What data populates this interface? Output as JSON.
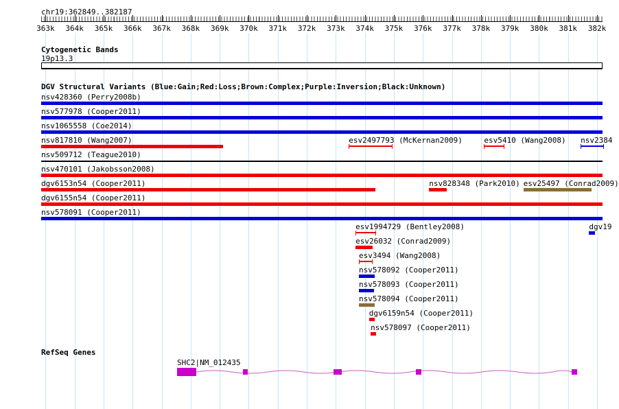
{
  "header": {
    "position": "chr19:362849..382187"
  },
  "grid": {
    "color": "#c9e4f2"
  },
  "ruler": {
    "ticks": [
      {
        "label": "363k",
        "pct": 0.78
      },
      {
        "label": "364k",
        "pct": 5.95
      },
      {
        "label": "365k",
        "pct": 11.12
      },
      {
        "label": "366k",
        "pct": 16.29
      },
      {
        "label": "367k",
        "pct": 21.47
      },
      {
        "label": "368k",
        "pct": 26.64
      },
      {
        "label": "369k",
        "pct": 31.81
      },
      {
        "label": "370k",
        "pct": 36.98
      },
      {
        "label": "371k",
        "pct": 42.15
      },
      {
        "label": "372k",
        "pct": 47.32
      },
      {
        "label": "373k",
        "pct": 52.49
      },
      {
        "label": "374k",
        "pct": 57.66
      },
      {
        "label": "375k",
        "pct": 62.84
      },
      {
        "label": "376k",
        "pct": 68.01
      },
      {
        "label": "377k",
        "pct": 73.18
      },
      {
        "label": "378k",
        "pct": 78.35
      },
      {
        "label": "379k",
        "pct": 83.52
      },
      {
        "label": "380k",
        "pct": 88.69
      },
      {
        "label": "381k",
        "pct": 93.86
      },
      {
        "label": "382k",
        "pct": 99.03
      }
    ]
  },
  "cytobands": {
    "title": "Cytogenetic Bands",
    "band_label": "19p13.3"
  },
  "dgv": {
    "title": "DGV Structural Variants (Blue:Gain;Red:Loss;Brown:Complex;Purple:Inversion;Black:Unknown)",
    "palette": {
      "gain": "#0000dd",
      "loss": "#ee0000",
      "complex": "#8a6d3b",
      "inversion": "#7b1fa2",
      "unknown": "#000000"
    },
    "rows": [
      {
        "items": [
          {
            "label": "nsv428360 (Perry2008b)",
            "type": "gain",
            "style": "bar",
            "start": 0,
            "width": 100
          }
        ]
      },
      {
        "items": [
          {
            "label": "nsv577978 (Cooper2011)",
            "type": "gain",
            "style": "bar",
            "start": 0,
            "width": 100
          }
        ]
      },
      {
        "items": [
          {
            "label": "nsv1065558 (Coe2014)",
            "type": "gain",
            "style": "bar",
            "start": 0,
            "width": 100
          }
        ]
      },
      {
        "items": [
          {
            "label": "nsv817810 (Wang2007)",
            "type": "loss",
            "style": "bar",
            "start": 0,
            "width": 32.4
          },
          {
            "label": "esv2497793 (McKernan2009)",
            "type": "loss",
            "style": "bracket",
            "start": 54.8,
            "width": 7.6
          },
          {
            "label": "esv5410 (Wang2008)",
            "type": "loss",
            "style": "bracket",
            "start": 78.9,
            "width": 3.4
          },
          {
            "label": "nsv2384",
            "type": "gain",
            "style": "bracket",
            "start": 96.1,
            "width": 3.9
          }
        ]
      },
      {
        "items": [
          {
            "label": "nsv509712 (Teague2010)",
            "type": "unknown",
            "style": "thin-bar",
            "start": 0,
            "width": 100
          }
        ]
      },
      {
        "items": [
          {
            "label": "nsv470101 (Jakobsson2008)",
            "type": "loss",
            "style": "bar",
            "start": 0,
            "width": 100
          }
        ]
      },
      {
        "items": [
          {
            "label": "dgv6153n54 (Cooper2011)",
            "type": "loss",
            "style": "bar",
            "start": 0,
            "width": 59.5
          },
          {
            "label": "nsv828348 (Park2010)",
            "type": "loss",
            "style": "bar",
            "start": 69.1,
            "width": 3.2
          },
          {
            "label": "esv25497 (Conrad2009)",
            "type": "complex",
            "style": "bar",
            "start": 85.9,
            "width": 12.1
          }
        ]
      },
      {
        "items": [
          {
            "label": "dgv6155n54 (Cooper2011)",
            "type": "loss",
            "style": "bar",
            "start": 0,
            "width": 100
          }
        ]
      },
      {
        "items": [
          {
            "label": "nsv578091 (Cooper2011)",
            "type": "gain",
            "style": "bar",
            "start": 0,
            "width": 100
          }
        ]
      },
      {
        "items": [
          {
            "label": "esv1994729 (Bentley2008)",
            "type": "loss",
            "style": "bracket",
            "start": 56.0,
            "width": 3.4
          },
          {
            "label": "dgv19",
            "type": "gain",
            "style": "bar",
            "start": 97.6,
            "width": 1.0
          }
        ]
      },
      {
        "items": [
          {
            "label": "esv26032 (Conrad2009)",
            "type": "loss",
            "style": "bar",
            "start": 56.0,
            "width": 3.1
          }
        ]
      },
      {
        "items": [
          {
            "label": "esv3494 (Wang2008)",
            "type": "loss",
            "style": "bracket",
            "start": 56.6,
            "width": 2.2
          }
        ]
      },
      {
        "items": [
          {
            "label": "nsv578092 (Cooper2011)",
            "type": "gain",
            "style": "bar",
            "start": 56.6,
            "width": 2.8
          }
        ]
      },
      {
        "items": [
          {
            "label": "nsv578093 (Cooper2011)",
            "type": "gain",
            "style": "bar",
            "start": 56.6,
            "width": 2.7
          }
        ]
      },
      {
        "items": [
          {
            "label": "nsv578094 (Cooper2011)",
            "type": "complex",
            "style": "bar",
            "start": 56.6,
            "width": 2.8
          }
        ]
      },
      {
        "items": [
          {
            "label": "dgv6159n54 (Cooper2011)",
            "type": "loss",
            "style": "bar",
            "start": 58.4,
            "width": 1.0
          }
        ]
      },
      {
        "items": [
          {
            "label": "nsv578097 (Cooper2011)",
            "type": "loss",
            "style": "bar",
            "start": 58.7,
            "width": 0.9
          }
        ]
      }
    ]
  },
  "refseq": {
    "title": "RefSeq Genes",
    "gene": {
      "label": "SHC2|NM_012435",
      "label_start": 24.2,
      "line_start": 27.6,
      "line_end": 94.6,
      "exon_color": "#cc00cc",
      "line_color": "#c75fc7",
      "exons": [
        {
          "start": 24.2,
          "width": 3.4,
          "tall": true
        },
        {
          "start": 35.9,
          "width": 0.9
        },
        {
          "start": 52.1,
          "width": 1.5
        },
        {
          "start": 66.8,
          "width": 0.9
        },
        {
          "start": 94.5,
          "width": 1.0
        }
      ]
    }
  }
}
